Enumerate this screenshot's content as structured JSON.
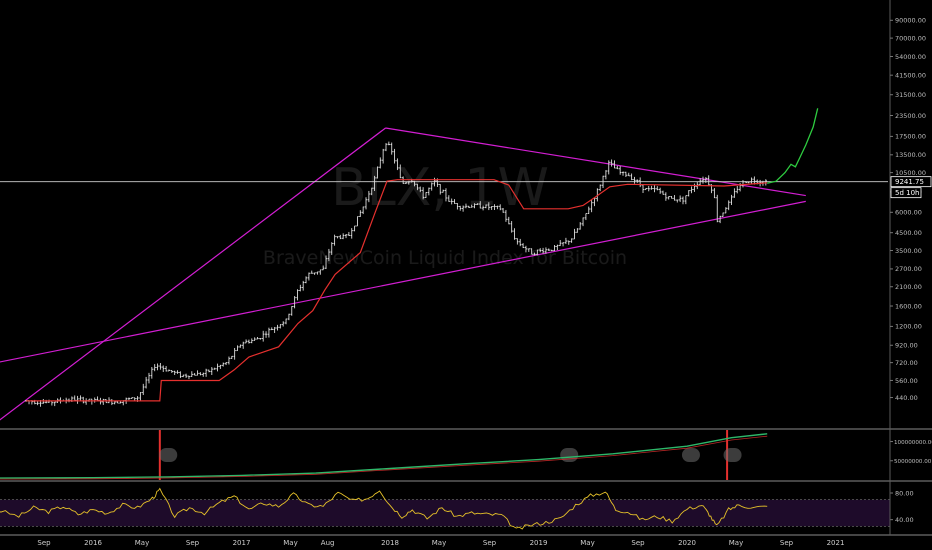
{
  "watermark": {
    "symbol": "BLX, 1W",
    "name": "BraveNewCoin Liquid Index for Bitcoin"
  },
  "current_price": {
    "label": "9241.75",
    "value": 9241.75,
    "timer": "5d 10h"
  },
  "colors": {
    "background": "#000000",
    "candle": "#dcdcdc",
    "trendline": "#d21ed2",
    "support_line": "#e5302e",
    "projection": "#2ecc40",
    "obv_line": "#2eb86a",
    "obv_signal": "#e5302e",
    "rsi_line": "#e6c229",
    "rsi_band": "#1e0b2a",
    "panel_divider": "#8a8a8a"
  },
  "chart_data": {
    "type": "candlestick",
    "symbol": "BLX",
    "timeframe": "1W",
    "scale": "log",
    "ylim": [
      400,
      100000
    ],
    "y_ticks": [
      {
        "value": 90000,
        "label": "90000.00"
      },
      {
        "value": 70000,
        "label": "70000.00"
      },
      {
        "value": 54000,
        "label": "54000.00"
      },
      {
        "value": 41500,
        "label": "41500.00"
      },
      {
        "value": 31500,
        "label": "31500.00"
      },
      {
        "value": 23500,
        "label": "23500.00"
      },
      {
        "value": 17500,
        "label": "17500.00"
      },
      {
        "value": 13500,
        "label": "13500.00"
      },
      {
        "value": 10500,
        "label": "10500.00"
      },
      {
        "value": 8000,
        "label": "8000.00"
      },
      {
        "value": 6000,
        "label": "6000.00"
      },
      {
        "value": 4500,
        "label": "4500.00"
      },
      {
        "value": 3500,
        "label": "3500.00"
      },
      {
        "value": 2700,
        "label": "2700.00"
      },
      {
        "value": 2100,
        "label": "2100.00"
      },
      {
        "value": 1600,
        "label": "1600.00"
      },
      {
        "value": 1200,
        "label": "1200.00"
      },
      {
        "value": 920,
        "label": "920.00"
      },
      {
        "value": 720,
        "label": "720.00"
      },
      {
        "value": 560,
        "label": "560.00"
      },
      {
        "value": 440,
        "label": "440.00"
      }
    ],
    "x_ticks": [
      "Sep",
      "2016",
      "May",
      "Sep",
      "2017",
      "May",
      "Aug",
      "2018",
      "May",
      "Sep",
      "2019",
      "May",
      "Sep",
      "2020",
      "May",
      "Sep",
      "2021"
    ],
    "x_tick_dates": [
      2015.67,
      2016.0,
      2016.33,
      2016.67,
      2017.0,
      2017.33,
      2017.58,
      2018.0,
      2018.33,
      2018.67,
      2019.0,
      2019.33,
      2019.67,
      2020.0,
      2020.33,
      2020.67,
      2021.0
    ],
    "price_path": [
      [
        2015.55,
        420
      ],
      [
        2015.7,
        410
      ],
      [
        2015.85,
        430
      ],
      [
        2016.0,
        420
      ],
      [
        2016.15,
        415
      ],
      [
        2016.3,
        440
      ],
      [
        2016.42,
        700
      ],
      [
        2016.5,
        650
      ],
      [
        2016.6,
        600
      ],
      [
        2016.75,
        620
      ],
      [
        2016.9,
        720
      ],
      [
        2017.0,
        950
      ],
      [
        2017.1,
        1000
      ],
      [
        2017.2,
        1150
      ],
      [
        2017.3,
        1300
      ],
      [
        2017.38,
        2000
      ],
      [
        2017.45,
        2500
      ],
      [
        2017.55,
        2700
      ],
      [
        2017.62,
        4200
      ],
      [
        2017.72,
        4300
      ],
      [
        2017.82,
        6500
      ],
      [
        2017.9,
        9800
      ],
      [
        2017.97,
        16500
      ],
      [
        2018.02,
        13500
      ],
      [
        2018.08,
        9000
      ],
      [
        2018.15,
        9500
      ],
      [
        2018.22,
        7500
      ],
      [
        2018.3,
        9200
      ],
      [
        2018.4,
        7000
      ],
      [
        2018.48,
        6500
      ],
      [
        2018.6,
        6600
      ],
      [
        2018.7,
        6400
      ],
      [
        2018.75,
        6300
      ],
      [
        2018.85,
        4000
      ],
      [
        2018.95,
        3400
      ],
      [
        2019.1,
        3600
      ],
      [
        2019.22,
        4100
      ],
      [
        2019.3,
        5400
      ],
      [
        2019.4,
        8200
      ],
      [
        2019.47,
        12000
      ],
      [
        2019.55,
        10500
      ],
      [
        2019.62,
        10000
      ],
      [
        2019.72,
        8300
      ],
      [
        2019.8,
        8200
      ],
      [
        2019.88,
        7300
      ],
      [
        2019.97,
        7200
      ],
      [
        2020.05,
        8800
      ],
      [
        2020.12,
        9900
      ],
      [
        2020.18,
        8000
      ],
      [
        2020.2,
        5300
      ],
      [
        2020.28,
        6800
      ],
      [
        2020.35,
        8800
      ],
      [
        2020.42,
        9500
      ],
      [
        2020.5,
        9300
      ],
      [
        2020.54,
        9242
      ]
    ],
    "support_line_path": [
      [
        2015.55,
        420
      ],
      [
        2016.45,
        420
      ],
      [
        2016.46,
        560
      ],
      [
        2016.85,
        560
      ],
      [
        2016.95,
        650
      ],
      [
        2017.05,
        780
      ],
      [
        2017.25,
        900
      ],
      [
        2017.38,
        1250
      ],
      [
        2017.48,
        1500
      ],
      [
        2017.56,
        2000
      ],
      [
        2017.63,
        2500
      ],
      [
        2017.8,
        3400
      ],
      [
        2017.9,
        6000
      ],
      [
        2017.98,
        9300
      ],
      [
        2018.05,
        9500
      ],
      [
        2018.7,
        9500
      ],
      [
        2018.8,
        8800
      ],
      [
        2018.9,
        6300
      ],
      [
        2019.05,
        6300
      ],
      [
        2019.2,
        6300
      ],
      [
        2019.3,
        6600
      ],
      [
        2019.38,
        7400
      ],
      [
        2019.48,
        8600
      ],
      [
        2019.6,
        8900
      ],
      [
        2020.25,
        8700
      ],
      [
        2020.54,
        9100
      ]
    ],
    "triangle": {
      "upper_left_line": [
        [
          2015.35,
          310
        ],
        [
          2017.97,
          19700
        ]
      ],
      "upper_right_line": [
        [
          2017.97,
          19700
        ],
        [
          2020.8,
          7600
        ]
      ],
      "lower_line": [
        [
          2015.35,
          720
        ],
        [
          2020.8,
          7000
        ]
      ]
    },
    "projection_path": [
      [
        2020.54,
        9050
      ],
      [
        2020.6,
        9300
      ],
      [
        2020.66,
        10500
      ],
      [
        2020.7,
        11800
      ],
      [
        2020.73,
        11400
      ],
      [
        2020.76,
        13000
      ],
      [
        2020.8,
        15500
      ],
      [
        2020.85,
        20000
      ],
      [
        2020.88,
        26000
      ]
    ],
    "obv": {
      "y_ticks": [
        {
          "value": 100000000,
          "label": "100000000.00"
        },
        {
          "value": 50000000,
          "label": "50000000.00"
        }
      ],
      "ylim": [
        0,
        130000000
      ],
      "path": [
        [
          2015.35,
          5000000
        ],
        [
          2016.0,
          6000000
        ],
        [
          2016.5,
          8000000
        ],
        [
          2017.0,
          12000000
        ],
        [
          2017.5,
          18000000
        ],
        [
          2018.0,
          30000000
        ],
        [
          2018.5,
          42000000
        ],
        [
          2019.0,
          53000000
        ],
        [
          2019.5,
          68000000
        ],
        [
          2020.0,
          88000000
        ],
        [
          2020.3,
          110000000
        ],
        [
          2020.54,
          120000000
        ]
      ]
    },
    "rsi": {
      "y_ticks": [
        {
          "value": 80,
          "label": "80.00"
        },
        {
          "value": 40,
          "label": "40.00"
        }
      ],
      "upper_band": 70,
      "lower_band": 30,
      "path": [
        [
          2015.35,
          55
        ],
        [
          2015.5,
          45
        ],
        [
          2015.6,
          58
        ],
        [
          2015.7,
          52
        ],
        [
          2015.8,
          60
        ],
        [
          2015.9,
          48
        ],
        [
          2016.0,
          55
        ],
        [
          2016.1,
          50
        ],
        [
          2016.2,
          62
        ],
        [
          2016.3,
          58
        ],
        [
          2016.4,
          72
        ],
        [
          2016.45,
          85
        ],
        [
          2016.55,
          45
        ],
        [
          2016.65,
          58
        ],
        [
          2016.75,
          50
        ],
        [
          2016.85,
          65
        ],
        [
          2016.95,
          75
        ],
        [
          2017.05,
          55
        ],
        [
          2017.15,
          65
        ],
        [
          2017.25,
          60
        ],
        [
          2017.35,
          78
        ],
        [
          2017.45,
          62
        ],
        [
          2017.55,
          60
        ],
        [
          2017.65,
          80
        ],
        [
          2017.75,
          68
        ],
        [
          2017.85,
          72
        ],
        [
          2017.93,
          85
        ],
        [
          2018.0,
          62
        ],
        [
          2018.08,
          45
        ],
        [
          2018.15,
          55
        ],
        [
          2018.25,
          42
        ],
        [
          2018.35,
          58
        ],
        [
          2018.45,
          45
        ],
        [
          2018.55,
          50
        ],
        [
          2018.65,
          48
        ],
        [
          2018.75,
          47
        ],
        [
          2018.85,
          25
        ],
        [
          2018.95,
          32
        ],
        [
          2019.05,
          36
        ],
        [
          2019.15,
          42
        ],
        [
          2019.25,
          62
        ],
        [
          2019.35,
          76
        ],
        [
          2019.45,
          82
        ],
        [
          2019.52,
          55
        ],
        [
          2019.6,
          52
        ],
        [
          2019.7,
          40
        ],
        [
          2019.8,
          45
        ],
        [
          2019.9,
          38
        ],
        [
          2020.0,
          56
        ],
        [
          2020.1,
          62
        ],
        [
          2020.15,
          48
        ],
        [
          2020.2,
          30
        ],
        [
          2020.28,
          55
        ],
        [
          2020.35,
          62
        ],
        [
          2020.45,
          58
        ],
        [
          2020.54,
          60
        ]
      ]
    }
  }
}
